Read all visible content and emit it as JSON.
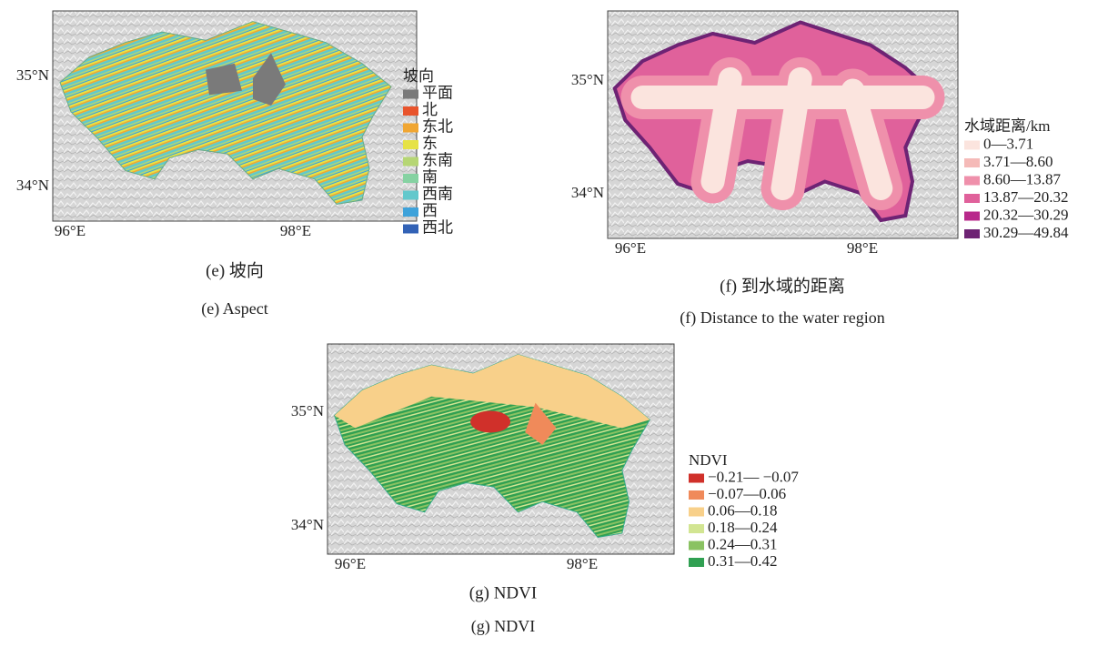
{
  "panels": [
    {
      "y_labels": [
        "35°N",
        "34°N"
      ],
      "x_labels": [
        "96°E",
        "98°E"
      ],
      "legend": {
        "title": "坡向",
        "items": [
          {
            "label": "平面",
            "color": "#7a7a7a"
          },
          {
            "label": "北",
            "color": "#e8542c"
          },
          {
            "label": "东北",
            "color": "#f0a632"
          },
          {
            "label": "东",
            "color": "#e6e246"
          },
          {
            "label": "东南",
            "color": "#b6d674"
          },
          {
            "label": "南",
            "color": "#86d2a2"
          },
          {
            "label": "西南",
            "color": "#62c8cc"
          },
          {
            "label": "西",
            "color": "#3ea2da"
          },
          {
            "label": "西北",
            "color": "#3262b6"
          }
        ]
      },
      "caption_cn": "(e) 坡向",
      "caption_en": "(e) Aspect"
    },
    {
      "y_labels": [
        "35°N",
        "34°N"
      ],
      "x_labels": [
        "96°E",
        "98°E"
      ],
      "legend": {
        "title": "水域距离/km",
        "items": [
          {
            "label": "0—3.71",
            "color": "#fbe4de"
          },
          {
            "label": "3.71—8.60",
            "color": "#f5bab8"
          },
          {
            "label": "8.60—13.87",
            "color": "#ef90ab"
          },
          {
            "label": "13.87—20.32",
            "color": "#e0619b"
          },
          {
            "label": "20.32—30.29",
            "color": "#b8298b"
          },
          {
            "label": "30.29—49.84",
            "color": "#6e2374"
          }
        ]
      },
      "caption_cn": "(f) 到水域的距离",
      "caption_en": "(f) Distance to the water region"
    },
    {
      "y_labels": [
        "35°N",
        "34°N"
      ],
      "x_labels": [
        "96°E",
        "98°E"
      ],
      "legend": {
        "title": "NDVI",
        "items": [
          {
            "label": "−0.21— −0.07",
            "color": "#d0302a"
          },
          {
            "label": "−0.07—0.06",
            "color": "#f08a5a"
          },
          {
            "label": "0.06—0.18",
            "color": "#f8d08a"
          },
          {
            "label": "0.18—0.24",
            "color": "#d2e592"
          },
          {
            "label": "0.24—0.31",
            "color": "#8ac262"
          },
          {
            "label": "0.31—0.42",
            "color": "#30a052"
          }
        ]
      },
      "caption_cn": "(g) NDVI",
      "caption_en": "(g) NDVI"
    }
  ]
}
